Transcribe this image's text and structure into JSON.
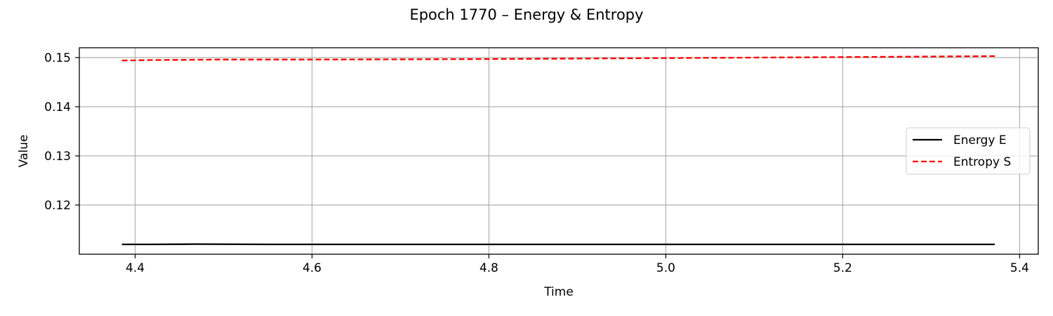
{
  "chart_data": {
    "type": "line",
    "title": "Epoch 1770 – Energy & Entropy",
    "xlabel": "Time",
    "ylabel": "Value",
    "xlim": [
      4.3369,
      5.4211
    ],
    "ylim": [
      0.11,
      0.152
    ],
    "xticks": [
      4.4,
      4.6,
      4.8,
      5.0,
      5.2,
      5.4
    ],
    "xtick_labels": [
      "4.4",
      "4.6",
      "4.8",
      "5.0",
      "5.2",
      "5.4"
    ],
    "yticks": [
      0.12,
      0.13,
      0.14,
      0.15
    ],
    "ytick_labels": [
      "0.12",
      "0.13",
      "0.14",
      "0.15"
    ],
    "grid": true,
    "legend_position": "center-right",
    "series": [
      {
        "name": "Energy E",
        "color": "#000000",
        "style": "solid",
        "x": [
          4.385,
          4.42,
          4.47,
          4.55,
          4.7,
          5.0,
          5.2,
          5.372
        ],
        "y": [
          0.112,
          0.112,
          0.11205,
          0.112,
          0.112,
          0.112,
          0.112,
          0.112
        ]
      },
      {
        "name": "Entropy S",
        "color": "#ff0000",
        "style": "dashed",
        "x": [
          4.385,
          4.42,
          4.5,
          4.6,
          4.8,
          5.0,
          5.2,
          5.372
        ],
        "y": [
          0.1494,
          0.1495,
          0.1496,
          0.1496,
          0.1497,
          0.1499,
          0.1501,
          0.1503
        ]
      }
    ]
  }
}
